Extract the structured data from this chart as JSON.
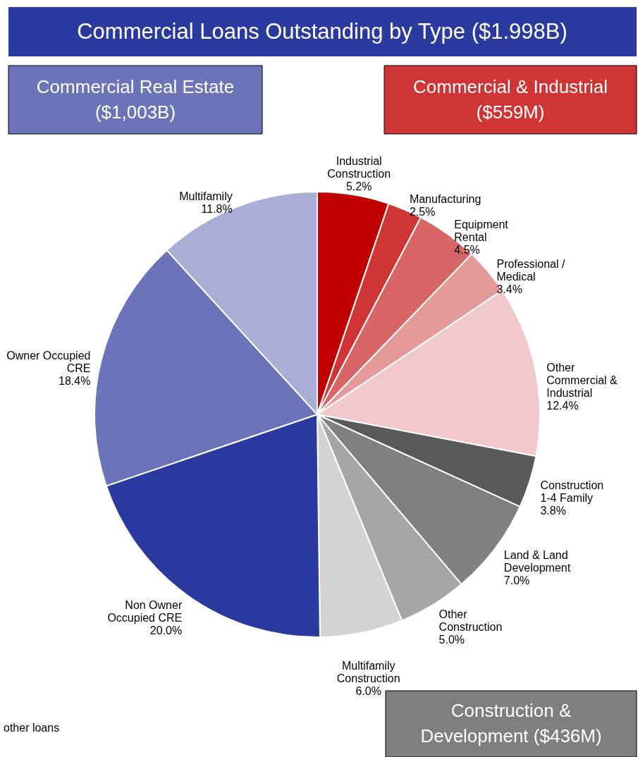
{
  "chart_data": {
    "type": "pie",
    "title": "Commercial Loans Outstanding by Type ($1.998B)",
    "categories": [
      "Industrial Construction",
      "Manufacturing",
      "Equipment Rental",
      "Professional / Medical",
      "Other Commercial & Industrial",
      "Construction 1-4 Family",
      "Land & Land Development",
      "Other Construction",
      "Multifamily Construction",
      "Non Owner Occupied CRE",
      "Owner Occupied CRE",
      "Multifamily"
    ],
    "values": [
      5.2,
      2.5,
      4.5,
      3.4,
      12.4,
      3.8,
      7.0,
      5.0,
      6.0,
      20.0,
      18.4,
      11.8
    ],
    "value_labels": [
      "5.2%",
      "2.5%",
      "4.5%",
      "3.4%",
      "12.4%",
      "3.8%",
      "7.0%",
      "5.0%",
      "6.0%",
      "20.0%",
      "18.4%",
      "11.8%"
    ],
    "colors": [
      "#c00000",
      "#d03535",
      "#d96666",
      "#e59a9a",
      "#f2c9ca",
      "#595959",
      "#808080",
      "#a6a6a6",
      "#d3d3d3",
      "#2b3a9e",
      "#6b74b9",
      "#a9aed6"
    ],
    "annotations": [
      "Commercial Real Estate ($1,003B)",
      "Commercial & Industrial ($559M)",
      "Construction & Development ($436M)",
      "other loans"
    ]
  }
}
